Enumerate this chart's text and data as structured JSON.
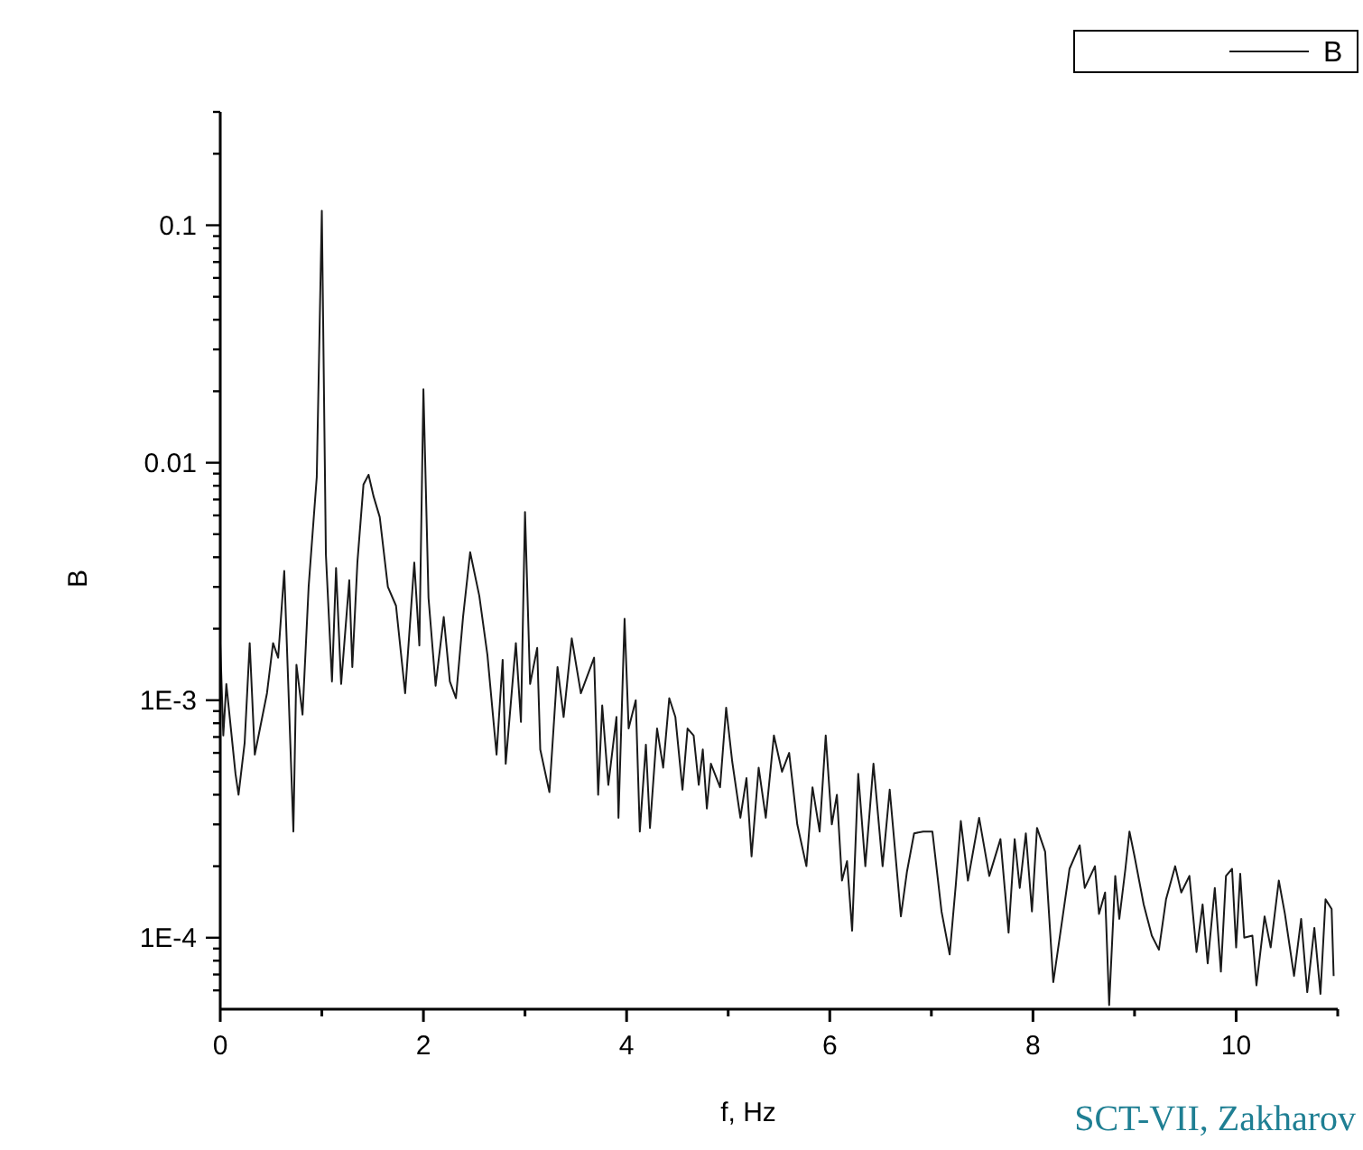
{
  "chart_data": {
    "type": "line",
    "xlabel": "f, Hz",
    "ylabel": "B",
    "log": "y",
    "legend": "top right",
    "marker": "none",
    "line_style": "solid",
    "grid": false,
    "xlim": [
      0,
      11
    ],
    "xticks": [
      0,
      {
        "value": 1,
        "label": null
      },
      2,
      {
        "value": 3,
        "label": null
      },
      4,
      {
        "value": 5,
        "label": null
      },
      6,
      {
        "value": 7,
        "label": null
      },
      8,
      {
        "value": 9,
        "label": null
      },
      10,
      {
        "value": 11,
        "label": null
      }
    ],
    "ylim": [
      5e-05,
      0.3
    ],
    "yticks": [
      {
        "value": 6e-05,
        "label": null
      },
      {
        "value": 7e-05,
        "label": null
      },
      {
        "value": 8e-05,
        "label": null
      },
      {
        "value": 9e-05,
        "label": null
      },
      {
        "value": 0.0001,
        "label": "1E-4"
      },
      {
        "value": 0.0002,
        "label": null
      },
      {
        "value": 0.0003,
        "label": null
      },
      {
        "value": 0.0004,
        "label": null
      },
      {
        "value": 0.0005,
        "label": null
      },
      {
        "value": 0.0006,
        "label": null
      },
      {
        "value": 0.0007,
        "label": null
      },
      {
        "value": 0.0008,
        "label": null
      },
      {
        "value": 0.0009,
        "label": null
      },
      {
        "value": 0.001,
        "label": "1E-3"
      },
      {
        "value": 0.002,
        "label": null
      },
      {
        "value": 0.003,
        "label": null
      },
      {
        "value": 0.004,
        "label": null
      },
      {
        "value": 0.005,
        "label": null
      },
      {
        "value": 0.006,
        "label": null
      },
      {
        "value": 0.007,
        "label": null
      },
      {
        "value": 0.008,
        "label": null
      },
      {
        "value": 0.009,
        "label": null
      },
      0.01,
      {
        "value": 0.02,
        "label": null
      },
      {
        "value": 0.03,
        "label": null
      },
      {
        "value": 0.04,
        "label": null
      },
      {
        "value": 0.05,
        "label": null
      },
      {
        "value": 0.06,
        "label": null
      },
      {
        "value": 0.07,
        "label": null
      },
      {
        "value": 0.08,
        "label": null
      },
      {
        "value": 0.09,
        "label": null
      },
      0.1,
      {
        "value": 0.2,
        "label": null
      },
      {
        "value": 0.3,
        "label": null
      }
    ],
    "annotations": [
      "SCT-VII, Zakharov"
    ],
    "x": [
      0,
      0.03,
      0.06,
      0.15,
      0.18,
      0.24,
      0.29,
      0.34,
      0.46,
      0.52,
      0.57,
      0.63,
      0.67,
      0.72,
      0.75,
      0.81,
      0.87,
      0.95,
      1.0,
      1.04,
      1.1,
      1.14,
      1.19,
      1.27,
      1.3,
      1.35,
      1.41,
      1.46,
      1.51,
      1.57,
      1.65,
      1.73,
      1.82,
      1.91,
      1.96,
      2.0,
      2.05,
      2.12,
      2.2,
      2.26,
      2.32,
      2.39,
      2.46,
      2.55,
      2.63,
      2.72,
      2.78,
      2.81,
      2.91,
      2.96,
      3.0,
      3.05,
      3.12,
      3.15,
      3.24,
      3.32,
      3.38,
      3.46,
      3.55,
      3.68,
      3.72,
      3.76,
      3.82,
      3.9,
      3.92,
      3.98,
      4.02,
      4.09,
      4.13,
      4.19,
      4.23,
      4.3,
      4.36,
      4.42,
      4.48,
      4.55,
      4.6,
      4.66,
      4.71,
      4.75,
      4.79,
      4.83,
      4.92,
      4.98,
      5.04,
      5.12,
      5.18,
      5.23,
      5.3,
      5.37,
      5.45,
      5.53,
      5.6,
      5.68,
      5.77,
      5.83,
      5.9,
      5.96,
      6.02,
      6.07,
      6.12,
      6.17,
      6.22,
      6.28,
      6.35,
      6.43,
      6.52,
      6.59,
      6.7,
      6.76,
      6.83,
      6.92,
      7.01,
      7.1,
      7.18,
      7.24,
      7.29,
      7.36,
      7.47,
      7.57,
      7.68,
      7.76,
      7.82,
      7.87,
      7.93,
      7.99,
      8.04,
      8.12,
      8.2,
      8.3,
      8.36,
      8.46,
      8.51,
      8.61,
      8.65,
      8.71,
      8.75,
      8.81,
      8.85,
      8.91,
      8.95,
      9.0,
      9.09,
      9.17,
      9.24,
      9.31,
      9.4,
      9.46,
      9.54,
      9.61,
      9.67,
      9.72,
      9.79,
      9.85,
      9.9,
      9.96,
      10.0,
      10.04,
      10.08,
      10.16,
      10.2,
      10.28,
      10.34,
      10.42,
      10.48,
      10.57,
      10.64,
      10.7,
      10.77,
      10.83,
      10.88,
      10.94,
      10.96
    ],
    "series": [
      {
        "name": "B",
        "color": "#1a1a1a",
        "values": [
          0.00174,
          0.00071,
          0.00117,
          0.00049,
          0.0004,
          0.00066,
          0.00174,
          0.00059,
          0.00107,
          0.00174,
          0.00151,
          0.0035,
          0.00115,
          0.00028,
          0.00141,
          0.00087,
          0.003,
          0.0087,
          0.115,
          0.0041,
          0.0012,
          0.0036,
          0.00117,
          0.0032,
          0.00138,
          0.0038,
          0.0081,
          0.0089,
          0.0072,
          0.0059,
          0.003,
          0.0025,
          0.00107,
          0.0038,
          0.0017,
          0.0204,
          0.0027,
          0.00115,
          0.00224,
          0.0012,
          0.00102,
          0.00224,
          0.0042,
          0.00275,
          0.00155,
          0.00059,
          0.00148,
          0.00054,
          0.00174,
          0.00081,
          0.0062,
          0.00117,
          0.00166,
          0.00062,
          0.00041,
          0.00138,
          0.00085,
          0.00182,
          0.00107,
          0.00151,
          0.0004,
          0.00095,
          0.00044,
          0.00085,
          0.00032,
          0.0022,
          0.00076,
          0.001,
          0.00028,
          0.00065,
          0.00029,
          0.00076,
          0.00052,
          0.00102,
          0.00085,
          0.00042,
          0.00076,
          0.00071,
          0.00044,
          0.00062,
          0.00035,
          0.00054,
          0.00043,
          0.00093,
          0.00055,
          0.00032,
          0.00047,
          0.00022,
          0.00052,
          0.00032,
          0.00071,
          0.0005,
          0.0006,
          0.0003,
          0.0002,
          0.00043,
          0.00028,
          0.00071,
          0.0003,
          0.0004,
          0.000174,
          0.00021,
          0.000107,
          0.00049,
          0.0002,
          0.00054,
          0.0002,
          0.00042,
          0.000123,
          0.00019,
          0.000275,
          0.00028,
          0.00028,
          0.000129,
          8.5e-05,
          0.000166,
          0.00031,
          0.000174,
          0.00032,
          0.000182,
          0.00026,
          0.000105,
          0.00026,
          0.000162,
          0.000275,
          0.000129,
          0.00029,
          0.00023,
          6.5e-05,
          0.000129,
          0.000195,
          0.000245,
          0.000162,
          0.0002,
          0.000126,
          0.000155,
          5.2e-05,
          0.000182,
          0.00012,
          0.000195,
          0.00028,
          0.00022,
          0.000138,
          0.000102,
          8.9e-05,
          0.000145,
          0.0002,
          0.000155,
          0.000182,
          8.7e-05,
          0.000138,
          7.8e-05,
          0.000162,
          7.2e-05,
          0.000182,
          0.000195,
          9.1e-05,
          0.000186,
          0.0001,
          0.000102,
          6.3e-05,
          0.000123,
          9.1e-05,
          0.000174,
          0.000126,
          6.9e-05,
          0.00012,
          5.9e-05,
          0.00011,
          5.8e-05,
          0.000145,
          0.000132,
          6.9e-05
        ]
      }
    ]
  }
}
